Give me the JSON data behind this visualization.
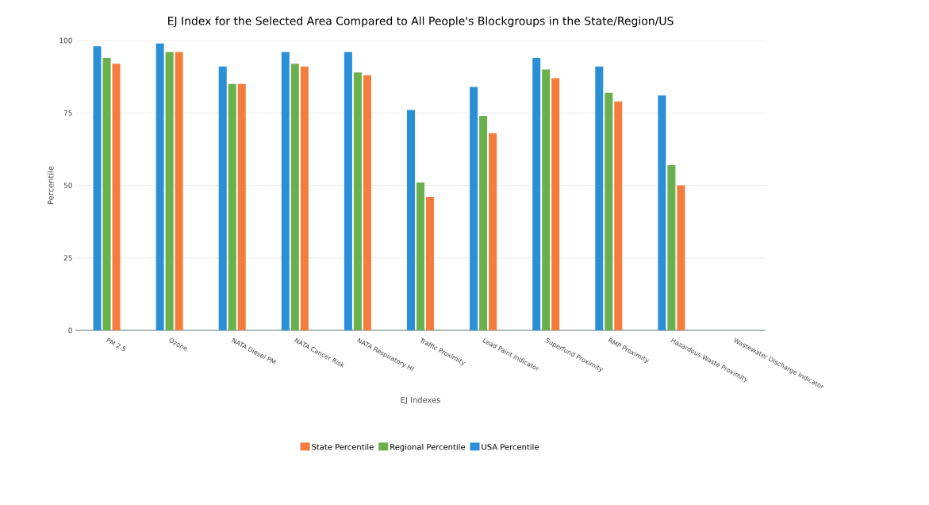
{
  "chart_data": {
    "type": "bar",
    "title": "EJ Index for the Selected Area Compared to All People's Blockgroups in the State/Region/US",
    "xlabel": "EJ Indexes",
    "ylabel": "Percentile",
    "categories": [
      "PM 2.5",
      "Ozone",
      "NATA Diesel PM",
      "NATA Cancer Risk",
      "NATA Respiratory HI",
      "Traffic Proximity",
      "Lead Paint Indicator",
      "Superfund Proximity",
      "RMP Proximity",
      "Hazardous Waste Proximity",
      "Wastewater Discharge Indicator"
    ],
    "series": [
      {
        "name": "USA Percentile",
        "color": "#2b8fd8",
        "values": [
          98,
          99,
          91,
          96,
          96,
          76,
          84,
          94,
          91,
          81,
          null
        ]
      },
      {
        "name": "Regional Percentile",
        "color": "#6ab04c",
        "values": [
          94,
          96,
          85,
          92,
          89,
          51,
          74,
          90,
          82,
          57,
          null
        ]
      },
      {
        "name": "State Percentile",
        "color": "#f47c3c",
        "values": [
          92,
          96,
          85,
          91,
          88,
          46,
          68,
          87,
          79,
          50,
          null
        ]
      }
    ],
    "ylim": [
      0,
      100
    ],
    "yticks": [
      0,
      25,
      50,
      75,
      100
    ],
    "grid": "y",
    "legend": "bottom"
  }
}
